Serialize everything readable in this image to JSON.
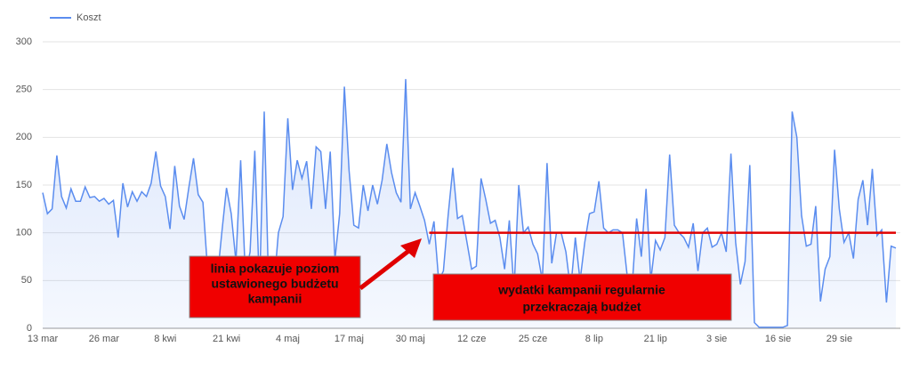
{
  "chart_data": {
    "type": "line",
    "legend": "top-left",
    "grid": true,
    "ylim": [
      0,
      300
    ],
    "yticks": [
      0,
      50,
      100,
      150,
      200,
      250,
      300
    ],
    "categories": [
      "13 mar",
      null,
      null,
      null,
      null,
      null,
      null,
      null,
      null,
      null,
      null,
      null,
      null,
      "26 mar",
      null,
      null,
      null,
      null,
      null,
      null,
      null,
      null,
      null,
      null,
      null,
      null,
      "8 kwi",
      null,
      null,
      null,
      null,
      null,
      null,
      null,
      null,
      null,
      null,
      null,
      null,
      "21 kwi",
      null,
      null,
      null,
      null,
      null,
      null,
      null,
      null,
      null,
      null,
      null,
      null,
      "4 maj",
      null,
      null,
      null,
      null,
      null,
      null,
      null,
      null,
      null,
      null,
      null,
      null,
      "17 maj",
      null,
      null,
      null,
      null,
      null,
      null,
      null,
      null,
      null,
      null,
      null,
      null,
      "30 maj",
      null,
      null,
      null,
      null,
      null,
      null,
      null,
      null,
      null,
      null,
      null,
      null,
      "12 cze",
      null,
      null,
      null,
      null,
      null,
      null,
      null,
      null,
      null,
      null,
      null,
      null,
      "25 cze",
      null,
      null,
      null,
      null,
      null,
      null,
      null,
      null,
      null,
      null,
      null,
      null,
      "8 lip",
      null,
      null,
      null,
      null,
      null,
      null,
      null,
      null,
      null,
      null,
      null,
      null,
      "21 lip",
      null,
      null,
      null,
      null,
      null,
      null,
      null,
      null,
      null,
      null,
      null,
      null,
      "3 sie",
      null,
      null,
      null,
      null,
      null,
      null,
      null,
      null,
      null,
      null,
      null,
      null,
      "16 sie",
      null,
      null,
      null,
      null,
      null,
      null,
      null,
      null,
      null,
      null,
      null,
      null,
      "29 sie",
      null,
      null,
      null,
      null,
      null,
      null,
      null,
      null,
      null,
      null,
      null,
      null
    ],
    "series": [
      {
        "name": "Koszt",
        "color": "#5b8def",
        "values": [
          142,
          120,
          125,
          181,
          138,
          126,
          146,
          133,
          133,
          148,
          137,
          138,
          133,
          136,
          130,
          134,
          95,
          152,
          127,
          143,
          133,
          143,
          138,
          152,
          185,
          149,
          138,
          104,
          170,
          128,
          114,
          147,
          178,
          140,
          132,
          60,
          30,
          50,
          100,
          147,
          120,
          70,
          176,
          55,
          80,
          186,
          40,
          227,
          30,
          40,
          100,
          117,
          220,
          145,
          176,
          157,
          175,
          125,
          190,
          185,
          125,
          185,
          72,
          120,
          253,
          165,
          108,
          105,
          150,
          123,
          150,
          130,
          155,
          193,
          163,
          142,
          132,
          261,
          125,
          142,
          128,
          113,
          88,
          112,
          50,
          60,
          118,
          168,
          115,
          118,
          90,
          62,
          65,
          157,
          135,
          110,
          113,
          95,
          62,
          113,
          40,
          150,
          100,
          106,
          88,
          78,
          50,
          173,
          68,
          100,
          100,
          80,
          40,
          95,
          50,
          90,
          120,
          122,
          154,
          105,
          100,
          103,
          103,
          100,
          55,
          40,
          115,
          75,
          146,
          50,
          92,
          82,
          95,
          182,
          108,
          100,
          95,
          85,
          110,
          60,
          100,
          105,
          85,
          88,
          100,
          80,
          183,
          90,
          46,
          70,
          171,
          6,
          1,
          1,
          1,
          1,
          1,
          1,
          3,
          227,
          200,
          118,
          86,
          88,
          128,
          28,
          62,
          75,
          187,
          125,
          90,
          100,
          73,
          135,
          155,
          108,
          167,
          97,
          103,
          27,
          86,
          84
        ]
      }
    ],
    "budget_line": {
      "value": 100,
      "start": 82,
      "color": "#e00000"
    },
    "annotations": [
      {
        "lines": [
          "linia pokazuje poziom",
          "ustawionego budżetu",
          "kampanii"
        ]
      },
      {
        "lines": [
          "wydatki kampanii regularnie",
          "przekraczają budżet"
        ]
      }
    ]
  }
}
